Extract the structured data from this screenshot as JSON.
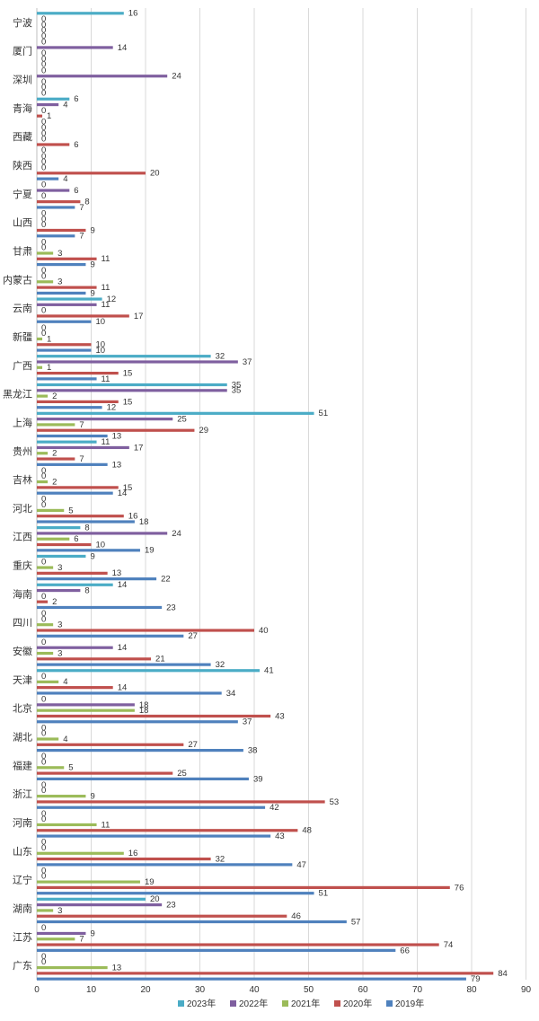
{
  "chart_data": {
    "type": "bar",
    "orientation": "horizontal",
    "categories": [
      "宁波",
      "厦门",
      "深圳",
      "青海",
      "西藏",
      "陕西",
      "宁夏",
      "山西",
      "甘肃",
      "内蒙古",
      "云南",
      "新疆",
      "广西",
      "黑龙江",
      "上海",
      "贵州",
      "吉林",
      "河北",
      "江西",
      "重庆",
      "海南",
      "四川",
      "安徽",
      "天津",
      "北京",
      "湖北",
      "福建",
      "浙江",
      "河南",
      "山东",
      "辽宁",
      "湖南",
      "江苏",
      "广东"
    ],
    "series": [
      {
        "name": "2023年",
        "color": "#4bacc6",
        "values": [
          16,
          0,
          0,
          6,
          0,
          0,
          0,
          0,
          0,
          0,
          12,
          0,
          32,
          35,
          51,
          11,
          0,
          0,
          8,
          9,
          14,
          0,
          0,
          41,
          0,
          0,
          0,
          0,
          0,
          0,
          0,
          20,
          0,
          0
        ]
      },
      {
        "name": "2022年",
        "color": "#7f5f9f",
        "values": [
          0,
          14,
          24,
          4,
          0,
          0,
          6,
          0,
          0,
          0,
          11,
          0,
          37,
          35,
          25,
          17,
          0,
          0,
          24,
          0,
          8,
          0,
          14,
          0,
          18,
          0,
          0,
          0,
          0,
          0,
          0,
          23,
          9,
          0
        ]
      },
      {
        "name": "2021年",
        "color": "#9bbb59",
        "values": [
          0,
          0,
          0,
          0,
          0,
          0,
          0,
          0,
          3,
          3,
          0,
          1,
          1,
          2,
          7,
          2,
          2,
          5,
          6,
          3,
          0,
          3,
          3,
          4,
          18,
          4,
          5,
          9,
          11,
          16,
          19,
          3,
          7,
          13
        ]
      },
      {
        "name": "2020年",
        "color": "#c0504d",
        "values": [
          0,
          0,
          0,
          1,
          6,
          20,
          8,
          9,
          11,
          11,
          17,
          10,
          15,
          15,
          29,
          7,
          15,
          16,
          10,
          13,
          2,
          40,
          21,
          14,
          43,
          27,
          25,
          53,
          48,
          32,
          76,
          46,
          74,
          84
        ]
      },
      {
        "name": "2019年",
        "color": "#4f81bd",
        "values": [
          0,
          0,
          0,
          0,
          0,
          4,
          7,
          7,
          9,
          9,
          10,
          10,
          11,
          12,
          13,
          13,
          14,
          18,
          19,
          22,
          23,
          27,
          32,
          34,
          37,
          38,
          39,
          42,
          43,
          47,
          51,
          57,
          66,
          79
        ]
      }
    ],
    "xlim": [
      0,
      90
    ],
    "xticks": [
      "0",
      "10",
      "20",
      "30",
      "40",
      "50",
      "60",
      "70",
      "80",
      "90"
    ],
    "grid": true,
    "legend_position": "bottom",
    "title": "",
    "xlabel": "",
    "ylabel": ""
  }
}
